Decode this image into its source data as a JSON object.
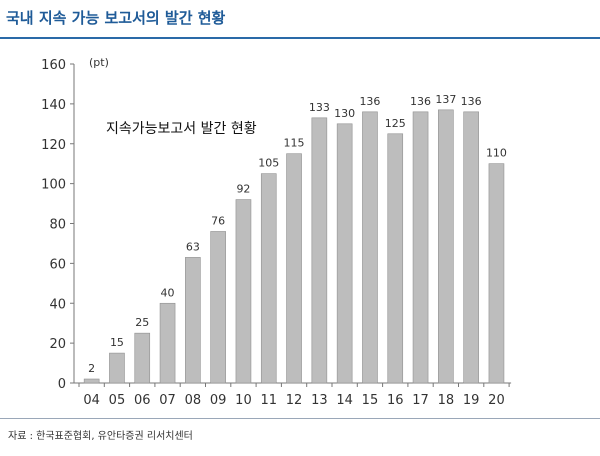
{
  "header": {
    "title": "국내 지속 가능 보고서의 발간 현황"
  },
  "source": "자료 : 한국표준협회, 유안타증권 리서치센터",
  "colors": {
    "title": "#1f5b98",
    "rule": "#2a6aa8",
    "bar": "#bdbdbd",
    "bar_edge": "#8f8f8f"
  },
  "chart_data": {
    "type": "bar",
    "unit": "(pt)",
    "annotation": "지속가능보고서 발간 현황",
    "categories": [
      "04",
      "05",
      "06",
      "07",
      "08",
      "09",
      "10",
      "11",
      "12",
      "13",
      "14",
      "15",
      "16",
      "17",
      "18",
      "19",
      "20"
    ],
    "values": [
      2,
      15,
      25,
      40,
      63,
      76,
      92,
      105,
      115,
      133,
      130,
      136,
      125,
      136,
      137,
      136,
      110
    ],
    "ylim": [
      0,
      160
    ],
    "yticks": [
      0,
      20,
      40,
      60,
      80,
      100,
      120,
      140,
      160
    ],
    "grid": false,
    "legend": "none"
  }
}
